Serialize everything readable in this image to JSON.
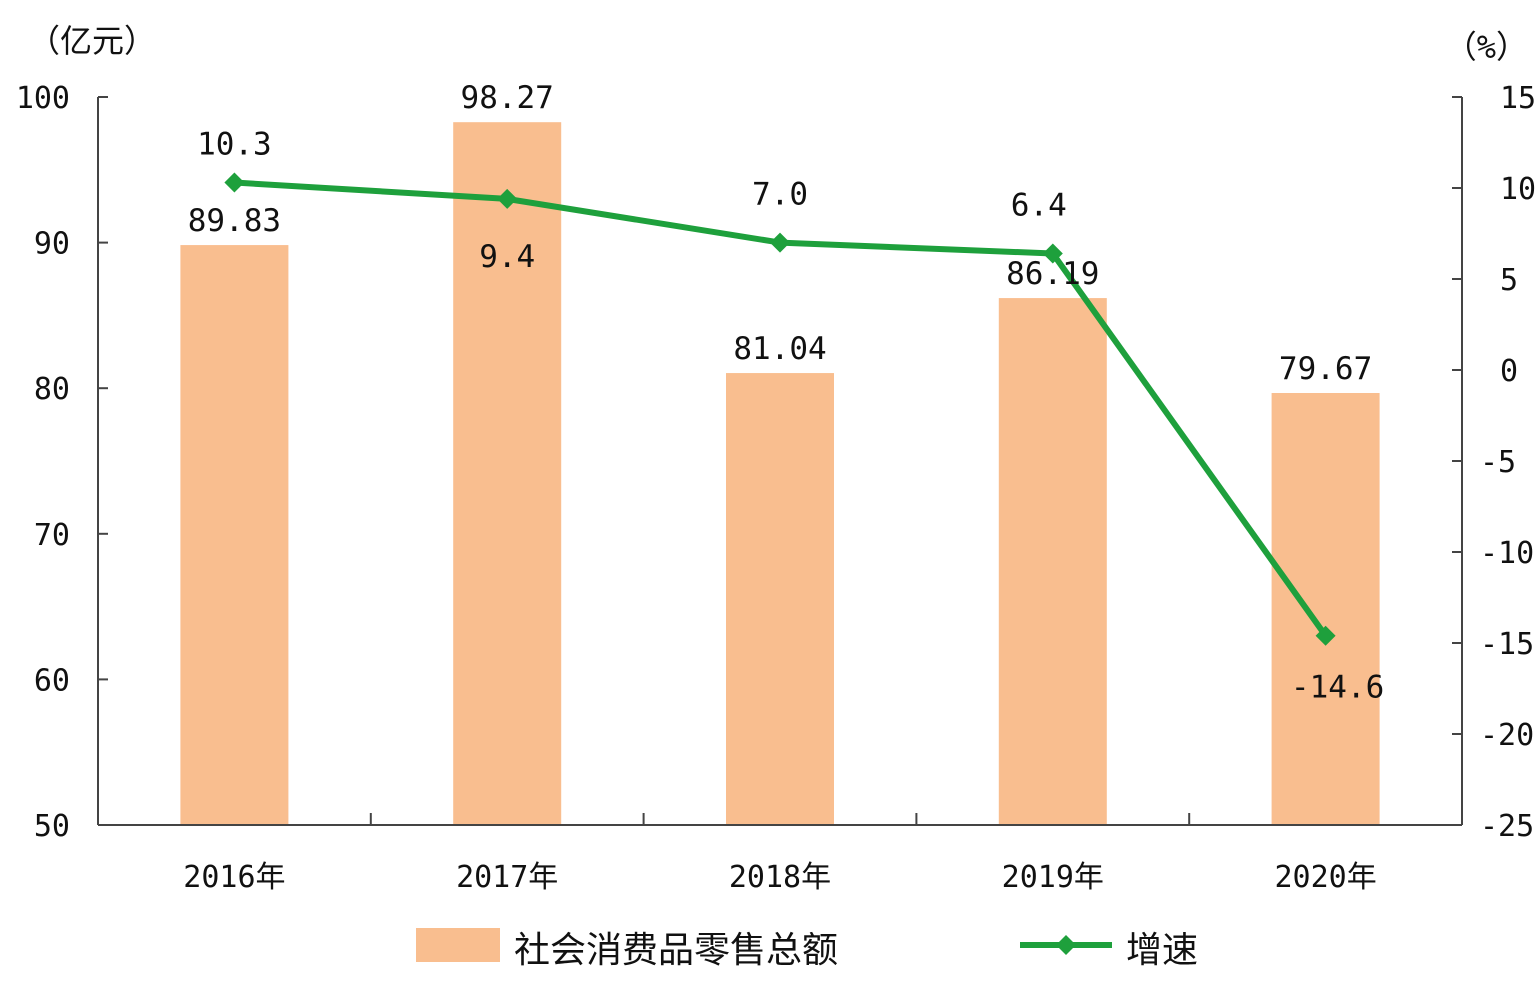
{
  "chart_data": {
    "type": "bar",
    "categories": [
      "2016年",
      "2017年",
      "2018年",
      "2019年",
      "2020年"
    ],
    "series": [
      {
        "name": "社会消费品零售总额",
        "type": "bar",
        "axis": "left",
        "values": [
          89.83,
          98.27,
          81.04,
          86.19,
          79.67
        ],
        "labels": [
          "89.83",
          "98.27",
          "81.04",
          "86.19",
          "79.67"
        ],
        "color": "#f9be8f"
      },
      {
        "name": "增速",
        "type": "line",
        "axis": "right",
        "values": [
          10.3,
          9.4,
          7.0,
          6.4,
          -14.6
        ],
        "labels": [
          "10.3",
          "9.4",
          "7.0",
          "6.4",
          "-14.6"
        ],
        "color": "#1ea03c"
      }
    ],
    "y_left": {
      "unit": "（亿元）",
      "lim": [
        50,
        100
      ],
      "ticks": [
        "50",
        "60",
        "70",
        "80",
        "90",
        "100"
      ]
    },
    "y_right": {
      "unit": "（%）",
      "lim": [
        -25,
        15
      ],
      "ticks": [
        "-25",
        "-20",
        "-15",
        "-10",
        "-5",
        "0",
        "5",
        "10",
        "15"
      ]
    },
    "legend": {
      "position": "bottom",
      "items": [
        "社会消费品零售总额",
        "增速"
      ]
    },
    "grid": false
  }
}
